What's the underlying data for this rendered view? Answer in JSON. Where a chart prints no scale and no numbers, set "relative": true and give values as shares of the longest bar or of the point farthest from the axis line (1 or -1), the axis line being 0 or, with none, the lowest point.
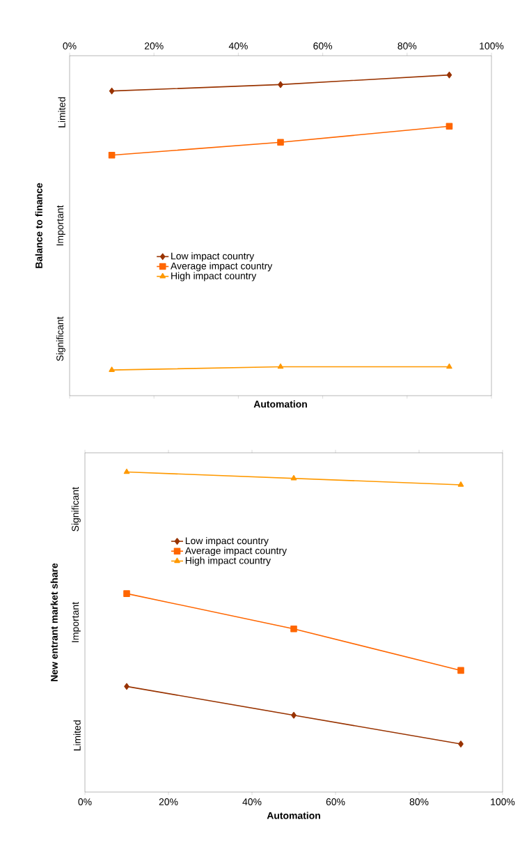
{
  "chart_data": [
    {
      "type": "line",
      "relative": true,
      "xlabel": "Automation",
      "ylabel": "Balance to finance",
      "xlim": [
        0,
        100
      ],
      "xticks": [
        {
          "value": 0,
          "label": "0%"
        },
        {
          "value": 20,
          "label": "20%"
        },
        {
          "value": 40,
          "label": "40%"
        },
        {
          "value": 60,
          "label": "60%"
        },
        {
          "value": 80,
          "label": "80%"
        },
        {
          "value": 100,
          "label": "100%"
        }
      ],
      "annotations": [
        "Limited",
        "Important",
        "Significant"
      ],
      "legend": "center",
      "line_style": "solid",
      "series": [
        {
          "name": "Low  impact country",
          "color": "#993300",
          "marker": "diamond",
          "x": [
            10,
            50,
            90
          ],
          "values": [
            0.95,
            0.97,
            1
          ]
        },
        {
          "name": "Average impact country",
          "color": "#ff6600",
          "marker": "square",
          "x": [
            10,
            50,
            90
          ],
          "values": [
            0.75,
            0.79,
            0.84
          ]
        },
        {
          "name": "High impact country",
          "color": "#ff9900",
          "marker": "triangle",
          "x": [
            10,
            50,
            90
          ],
          "values": [
            0.08,
            0.09,
            0.09
          ]
        }
      ]
    },
    {
      "type": "line",
      "relative": true,
      "xlabel": "Automation",
      "ylabel": "New entrant market share",
      "xlim": [
        0,
        100
      ],
      "xticks": [
        {
          "value": 0,
          "label": "0%"
        },
        {
          "value": 20,
          "label": "20%"
        },
        {
          "value": 40,
          "label": "40%"
        },
        {
          "value": 60,
          "label": "60%"
        },
        {
          "value": 80,
          "label": "80%"
        },
        {
          "value": 100,
          "label": "100%"
        }
      ],
      "annotations": [
        "Significant",
        "Important",
        "Limited"
      ],
      "legend": "top left",
      "line_style": "solid",
      "series": [
        {
          "name": "Low  impact country",
          "color": "#993300",
          "marker": "diamond",
          "x": [
            10,
            50,
            90
          ],
          "values": [
            0.33,
            0.24,
            0.15
          ]
        },
        {
          "name": "Average impact country",
          "color": "#ff6600",
          "marker": "square",
          "x": [
            10,
            50,
            90
          ],
          "values": [
            0.62,
            0.51,
            0.38
          ]
        },
        {
          "name": "High impact country",
          "color": "#ff9900",
          "marker": "triangle",
          "x": [
            10,
            50,
            90
          ],
          "values": [
            1,
            0.98,
            0.96
          ]
        }
      ]
    }
  ]
}
